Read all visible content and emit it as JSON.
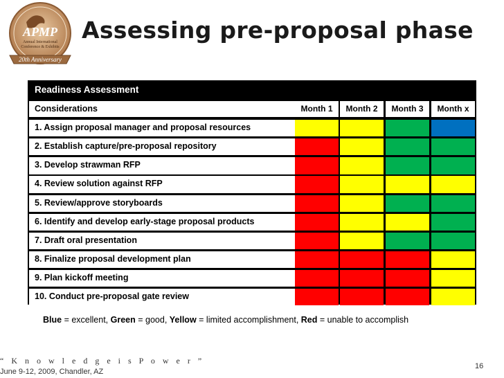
{
  "logo": {
    "brand": "APMP",
    "line1": "Annual International",
    "line2": "Conference & Exhibits",
    "ribbon": "20th Anniversary"
  },
  "title": "Assessing pre-proposal phase",
  "table": {
    "header": "Readiness Assessment",
    "considerations_label": "Considerations",
    "months": [
      "Month 1",
      "Month 2",
      "Month 3",
      "Month x"
    ],
    "rows": [
      {
        "label": "1.  Assign proposal manager and proposal resources",
        "status": [
          "yellow",
          "yellow",
          "green",
          "blue"
        ]
      },
      {
        "label": "2.  Establish capture/pre-proposal repository",
        "status": [
          "red",
          "yellow",
          "green",
          "green"
        ]
      },
      {
        "label": "3.   Develop strawman RFP",
        "status": [
          "red",
          "yellow",
          "green",
          "green"
        ]
      },
      {
        "label": "4.   Review solution against RFP",
        "status": [
          "red",
          "yellow",
          "yellow",
          "yellow"
        ]
      },
      {
        "label": "5.   Review/approve storyboards",
        "status": [
          "red",
          "yellow",
          "green",
          "green"
        ]
      },
      {
        "label": "6.   Identify and develop early-stage proposal products",
        "status": [
          "red",
          "yellow",
          "yellow",
          "green"
        ]
      },
      {
        "label": "7.   Draft oral presentation",
        "status": [
          "red",
          "yellow",
          "green",
          "green"
        ]
      },
      {
        "label": "8.   Finalize proposal development plan",
        "status": [
          "red",
          "red",
          "red",
          "yellow"
        ]
      },
      {
        "label": "9.   Plan kickoff meeting",
        "status": [
          "red",
          "red",
          "red",
          "yellow"
        ]
      },
      {
        "label": "10. Conduct pre-proposal gate review",
        "status": [
          "red",
          "red",
          "red",
          "yellow"
        ]
      }
    ]
  },
  "colors": {
    "yellow": "#ffff00",
    "green": "#00b050",
    "blue": "#0070c0",
    "red": "#ff0000"
  },
  "legend": {
    "blue_word": "Blue",
    "blue_text": " = excellent, ",
    "green_word": "Green",
    "green_text": " = good, ",
    "yellow_word": "Yellow",
    "yellow_text": " = limited accomplishment, ",
    "red_word": "Red",
    "red_text": " = unable to accomplish"
  },
  "footer": {
    "tagline": "“ K n o w l e d g e  i s  P o w e r ”",
    "event": "June 9-12, 2009, Chandler, AZ",
    "page_number": "16"
  }
}
